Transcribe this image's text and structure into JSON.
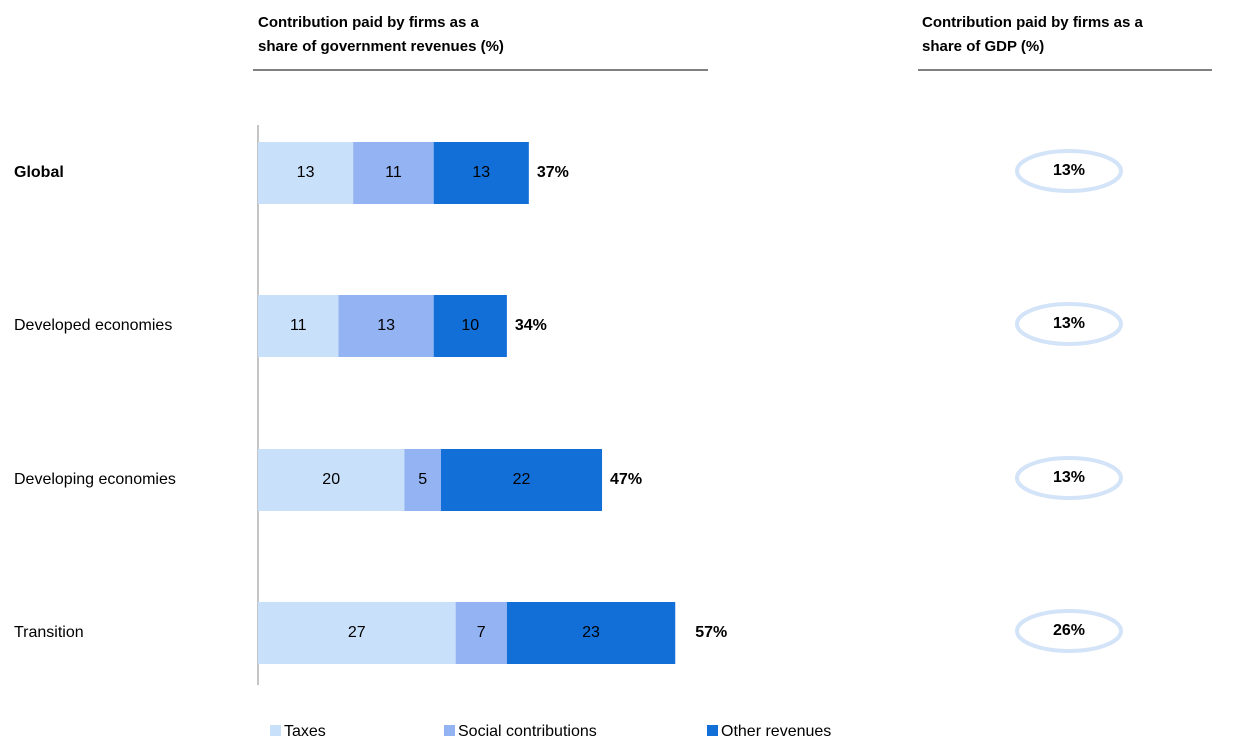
{
  "chart_data": {
    "type": "stacked-bar",
    "title": [
      "Contribution paid by firms as a",
      "share of government revenues (%)"
    ],
    "categories": [
      "Global",
      "Developed economies",
      "Developing economies",
      "Transition"
    ],
    "series": [
      {
        "name": "Taxes",
        "color": "#c9e0fa",
        "values": [
          13,
          11,
          20,
          27
        ]
      },
      {
        "name": "Social contributions",
        "color": "#93b3f3",
        "values": [
          11,
          13,
          5,
          7
        ]
      },
      {
        "name": "Other revenues",
        "color": "#136fd8",
        "values": [
          13,
          10,
          22,
          23
        ]
      }
    ],
    "totals": [
      37,
      34,
      47,
      57
    ],
    "total_labels": [
      "37%",
      "34%",
      "47%",
      "57%"
    ],
    "gdp_title": [
      "Contribution paid by firms as a",
      "share of GDP (%)"
    ],
    "gdp_values": [
      13,
      13,
      13,
      26
    ],
    "gdp_labels": [
      "13%",
      "13%",
      "13%",
      "26%"
    ],
    "gdp_color": "#d3e3f8"
  }
}
